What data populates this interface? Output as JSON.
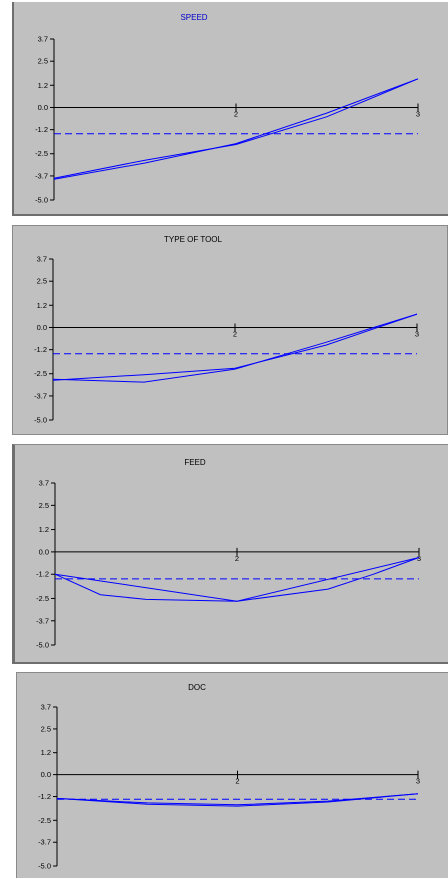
{
  "colors": {
    "panel_bg": "#c0c0c0",
    "series": "#0000ff",
    "axis": "#000000"
  },
  "chart_data": [
    {
      "type": "line",
      "title": "SPEED",
      "yticks": [
        "3.7",
        "2.5",
        "1.2",
        "0.0",
        "-1.2",
        "-2.5",
        "-3.7",
        "-5.0"
      ],
      "xticks": [
        "2",
        "3"
      ],
      "x": [
        1,
        2,
        3
      ],
      "xlim": [
        1,
        3
      ],
      "ylim": [
        -5.0,
        3.7
      ],
      "series": [
        {
          "x": [
            1,
            1.5,
            2,
            2.5,
            3
          ],
          "values": [
            -3.88,
            -3.0,
            -1.95,
            -0.3,
            1.55
          ],
          "style": "solid"
        },
        {
          "x": [
            1,
            1.5,
            2,
            2.5,
            3
          ],
          "values": [
            -3.82,
            -2.85,
            -2.0,
            -0.5,
            1.55
          ],
          "style": "solid"
        },
        {
          "x": [
            1,
            3
          ],
          "values": [
            -1.42,
            -1.42
          ],
          "style": "dashed"
        }
      ]
    },
    {
      "type": "line",
      "title": "TYPE OF TOOL",
      "yticks": [
        "3.7",
        "2.5",
        "1.2",
        "0.0",
        "-1.2",
        "-2.5",
        "-3.7",
        "-5.0"
      ],
      "xticks": [
        "2",
        "3"
      ],
      "x": [
        1,
        2,
        3
      ],
      "xlim": [
        1,
        3
      ],
      "ylim": [
        -5.0,
        3.7
      ],
      "series": [
        {
          "x": [
            1,
            1.5,
            2,
            2.5,
            3
          ],
          "values": [
            -2.85,
            -2.55,
            -2.2,
            -0.95,
            0.72
          ],
          "style": "solid"
        },
        {
          "x": [
            1,
            1.5,
            2,
            2.5,
            3
          ],
          "values": [
            -2.8,
            -2.95,
            -2.25,
            -0.8,
            0.72
          ],
          "style": "solid"
        },
        {
          "x": [
            1,
            3
          ],
          "values": [
            -1.42,
            -1.42
          ],
          "style": "dashed"
        }
      ]
    },
    {
      "type": "line",
      "title": "FEED",
      "yticks": [
        "3.7",
        "2.5",
        "1.2",
        "0.0",
        "-1.2",
        "-2.5",
        "-3.7",
        "-5.0"
      ],
      "xticks": [
        "2",
        "3"
      ],
      "x": [
        1,
        2,
        3
      ],
      "xlim": [
        1,
        3
      ],
      "ylim": [
        -5.0,
        3.7
      ],
      "series": [
        {
          "x": [
            1,
            1.25,
            1.5,
            2,
            2.5,
            2.75,
            3
          ],
          "values": [
            -1.2,
            -2.3,
            -2.55,
            -2.65,
            -2.0,
            -1.2,
            -0.3
          ],
          "style": "solid"
        },
        {
          "x": [
            1,
            2,
            3
          ],
          "values": [
            -1.2,
            -2.65,
            -0.3
          ],
          "style": "solid"
        },
        {
          "x": [
            1,
            3
          ],
          "values": [
            -1.45,
            -1.45
          ],
          "style": "dashed"
        }
      ]
    },
    {
      "type": "line",
      "title": "DOC",
      "yticks": [
        "3.7",
        "2.5",
        "1.2",
        "0.0",
        "-1.2",
        "-2.5",
        "-3.7",
        "-5.0"
      ],
      "xticks": [
        "2",
        "3"
      ],
      "x": [
        1,
        2,
        3
      ],
      "xlim": [
        1,
        3
      ],
      "ylim": [
        -5.0,
        3.7
      ],
      "series": [
        {
          "x": [
            1,
            1.5,
            2,
            2.5,
            3
          ],
          "values": [
            -1.3,
            -1.62,
            -1.72,
            -1.5,
            -1.05
          ],
          "style": "solid"
        },
        {
          "x": [
            1,
            1.5,
            2,
            2.5,
            3
          ],
          "values": [
            -1.3,
            -1.55,
            -1.65,
            -1.45,
            -1.05
          ],
          "style": "solid"
        },
        {
          "x": [
            1,
            3
          ],
          "values": [
            -1.35,
            -1.35
          ],
          "style": "dashed"
        }
      ]
    }
  ]
}
